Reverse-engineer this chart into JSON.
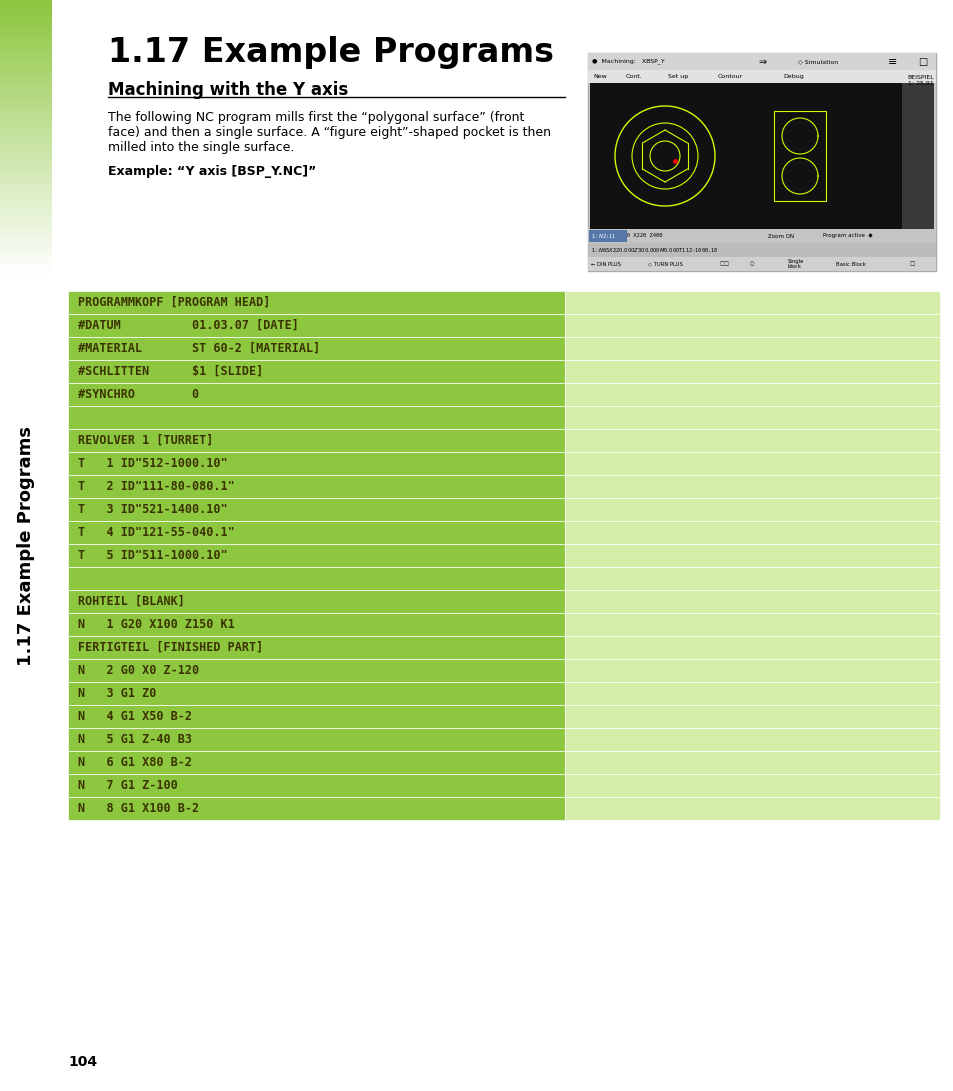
{
  "title": "1.17 Example Programs",
  "subtitle": "Machining with the Y axis",
  "sidebar_text": "1.17 Example Programs",
  "body_text_lines": [
    "The following NC program mills first the “polygonal surface” (front",
    "face) and then a single surface. A “figure eight”-shaped pocket is then",
    "milled into the single surface."
  ],
  "example_label": "Example: “Y axis [BSP_Y.NC]”",
  "page_number": "104",
  "bg_color": "#ffffff",
  "sidebar_green": "#8dc63f",
  "bright_green": "#8dc63f",
  "light_green": "#d4eda8",
  "row_text_color": "#3a3300",
  "rows": [
    {
      "text": "PROGRAMMKOPF [PROGRAM HEAD]",
      "left_bg": "#8dc63f",
      "right_bg": "#d4eda8"
    },
    {
      "text": "#DATUM          01.03.07 [DATE]",
      "left_bg": "#8dc63f",
      "right_bg": "#d4eda8"
    },
    {
      "text": "#MATERIAL       ST 60-2 [MATERIAL]",
      "left_bg": "#8dc63f",
      "right_bg": "#d4eda8"
    },
    {
      "text": "#SCHLITTEN      $1 [SLIDE]",
      "left_bg": "#8dc63f",
      "right_bg": "#d4eda8"
    },
    {
      "text": "#SYNCHRO        0",
      "left_bg": "#8dc63f",
      "right_bg": "#d4eda8"
    },
    {
      "text": "",
      "left_bg": "#8dc63f",
      "right_bg": "#d4eda8"
    },
    {
      "text": "REVOLVER 1 [TURRET]",
      "left_bg": "#8dc63f",
      "right_bg": "#d4eda8"
    },
    {
      "text": "T   1 ID\"512-1000.10\"",
      "left_bg": "#8dc63f",
      "right_bg": "#d4eda8"
    },
    {
      "text": "T   2 ID\"111-80-080.1\"",
      "left_bg": "#8dc63f",
      "right_bg": "#d4eda8"
    },
    {
      "text": "T   3 ID\"521-1400.10\"",
      "left_bg": "#8dc63f",
      "right_bg": "#d4eda8"
    },
    {
      "text": "T   4 ID\"121-55-040.1\"",
      "left_bg": "#8dc63f",
      "right_bg": "#d4eda8"
    },
    {
      "text": "T   5 ID\"511-1000.10\"",
      "left_bg": "#8dc63f",
      "right_bg": "#d4eda8"
    },
    {
      "text": "",
      "left_bg": "#8dc63f",
      "right_bg": "#d4eda8"
    },
    {
      "text": "ROHTEIL [BLANK]",
      "left_bg": "#8dc63f",
      "right_bg": "#d4eda8"
    },
    {
      "text": "N   1 G20 X100 Z150 K1",
      "left_bg": "#8dc63f",
      "right_bg": "#d4eda8"
    },
    {
      "text": "FERTIGTEIL [FINISHED PART]",
      "left_bg": "#8dc63f",
      "right_bg": "#d4eda8"
    },
    {
      "text": "N   2 G0 X0 Z-120",
      "left_bg": "#8dc63f",
      "right_bg": "#d4eda8"
    },
    {
      "text": "N   3 G1 Z0",
      "left_bg": "#8dc63f",
      "right_bg": "#d4eda8"
    },
    {
      "text": "N   4 G1 X50 B-2",
      "left_bg": "#8dc63f",
      "right_bg": "#d4eda8"
    },
    {
      "text": "N   5 G1 Z-40 B3",
      "left_bg": "#8dc63f",
      "right_bg": "#d4eda8"
    },
    {
      "text": "N   6 G1 X80 B-2",
      "left_bg": "#8dc63f",
      "right_bg": "#d4eda8"
    },
    {
      "text": "N   7 G1 Z-100",
      "left_bg": "#8dc63f",
      "right_bg": "#d4eda8"
    },
    {
      "text": "N   8 G1 X100 B-2",
      "left_bg": "#8dc63f",
      "right_bg": "#d4eda8"
    }
  ]
}
